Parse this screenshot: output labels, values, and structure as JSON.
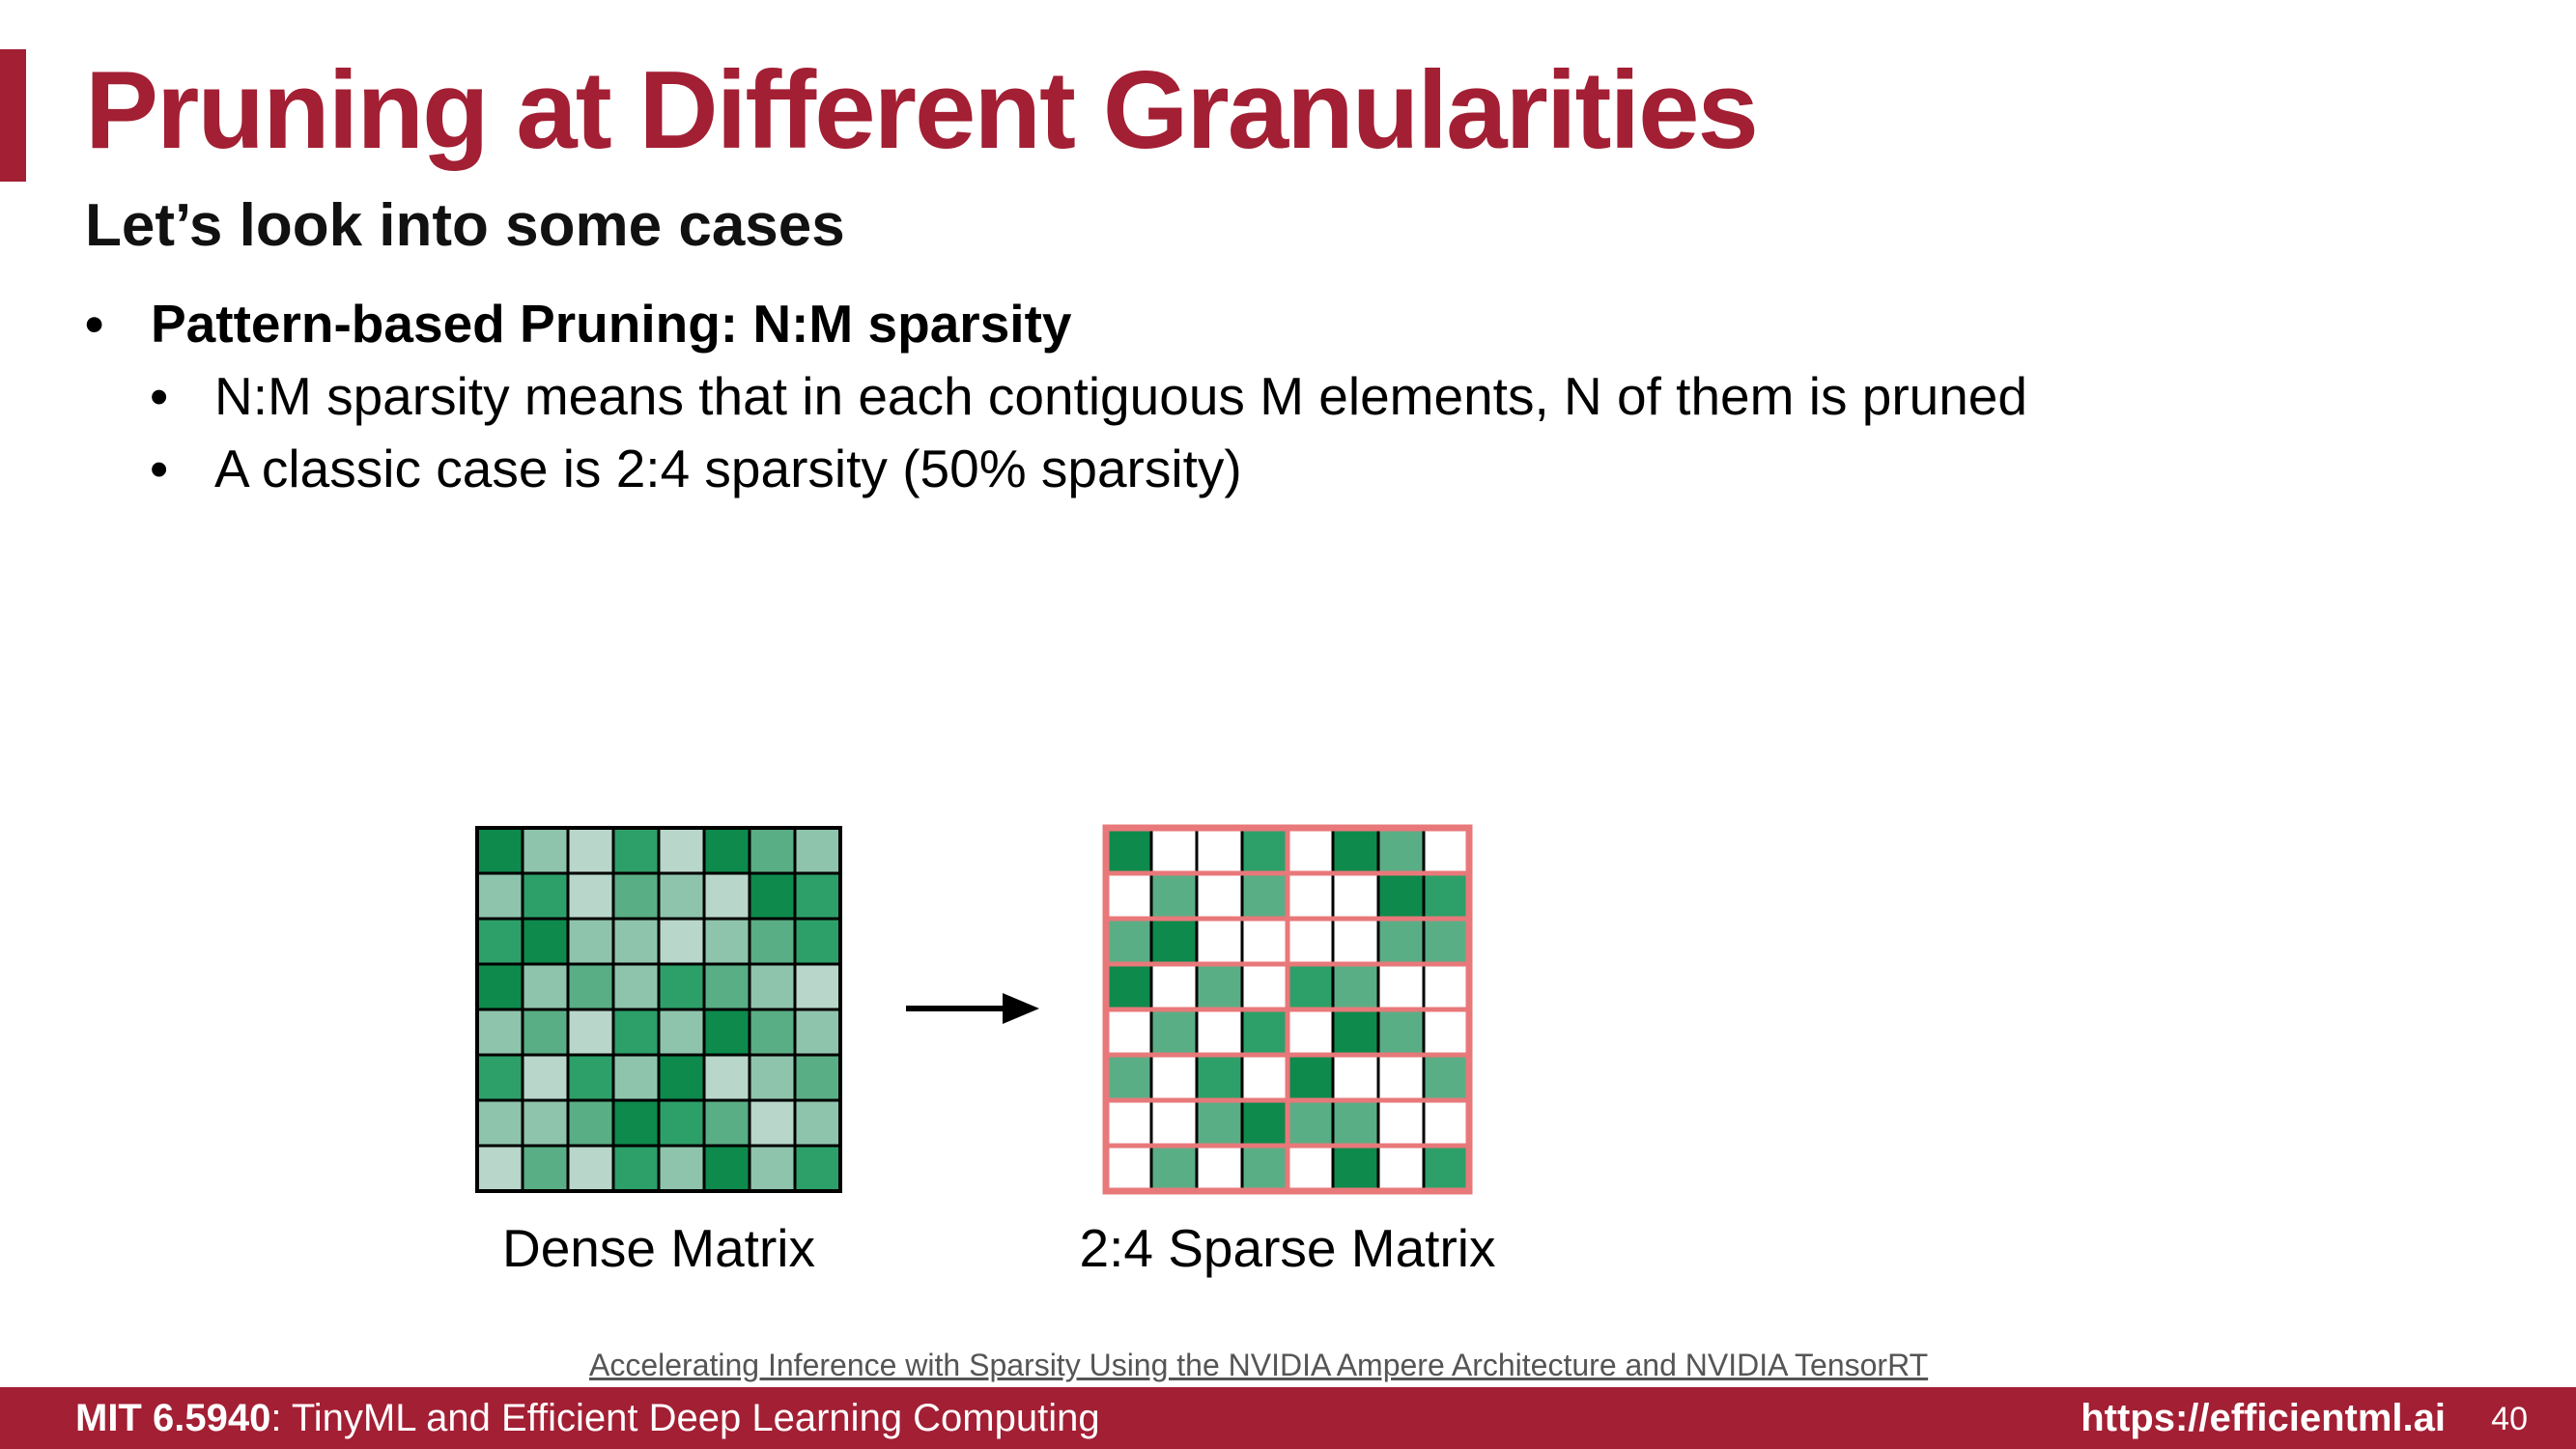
{
  "slide": {
    "title": "Pruning at Different Granularities",
    "subtitle": "Let’s look into some cases",
    "bullet_main": "Pattern-based Pruning: N:M sparsity",
    "sub_bullets": [
      "N:M sparsity means that in each contiguous M elements, N of them is pruned",
      "A classic case is 2:4 sparsity (50% sparsity)"
    ],
    "bullet_char": "•"
  },
  "diagram": {
    "dense_label": "Dense Matrix",
    "sparse_label": "2:4 Sparse Matrix",
    "palette": [
      "#ffffff",
      "#0d8a4c",
      "#2da069",
      "#5aae85",
      "#8fc4ac",
      "#b8d6ca"
    ],
    "group_border_color": "#e8787a",
    "dense_cells": [
      [
        1,
        4,
        5,
        2,
        5,
        1,
        3,
        4
      ],
      [
        4,
        2,
        5,
        3,
        4,
        5,
        1,
        2
      ],
      [
        2,
        1,
        4,
        4,
        5,
        4,
        3,
        2
      ],
      [
        1,
        4,
        3,
        4,
        2,
        3,
        4,
        5
      ],
      [
        4,
        3,
        5,
        2,
        4,
        1,
        3,
        4
      ],
      [
        2,
        5,
        2,
        4,
        1,
        5,
        4,
        3
      ],
      [
        4,
        4,
        3,
        1,
        2,
        3,
        5,
        4
      ],
      [
        5,
        3,
        5,
        2,
        4,
        1,
        4,
        2
      ]
    ],
    "sparse_cells": [
      [
        1,
        0,
        0,
        2,
        0,
        1,
        3,
        0
      ],
      [
        0,
        3,
        0,
        3,
        0,
        0,
        1,
        2
      ],
      [
        3,
        1,
        0,
        0,
        0,
        0,
        3,
        3
      ],
      [
        1,
        0,
        3,
        0,
        2,
        3,
        0,
        0
      ],
      [
        0,
        3,
        0,
        2,
        0,
        1,
        3,
        0
      ],
      [
        3,
        0,
        2,
        0,
        1,
        0,
        0,
        3
      ],
      [
        0,
        0,
        3,
        1,
        3,
        3,
        0,
        0
      ],
      [
        0,
        3,
        0,
        3,
        0,
        1,
        0,
        2
      ]
    ]
  },
  "citation": "Accelerating Inference with Sparsity Using the NVIDIA Ampere Architecture and NVIDIA TensorRT",
  "footer": {
    "course_code": "MIT 6.5940",
    "course_name": ": TinyML and Efficient Deep Learning Computing",
    "url": "https://efficientml.ai",
    "page_number": "40"
  }
}
